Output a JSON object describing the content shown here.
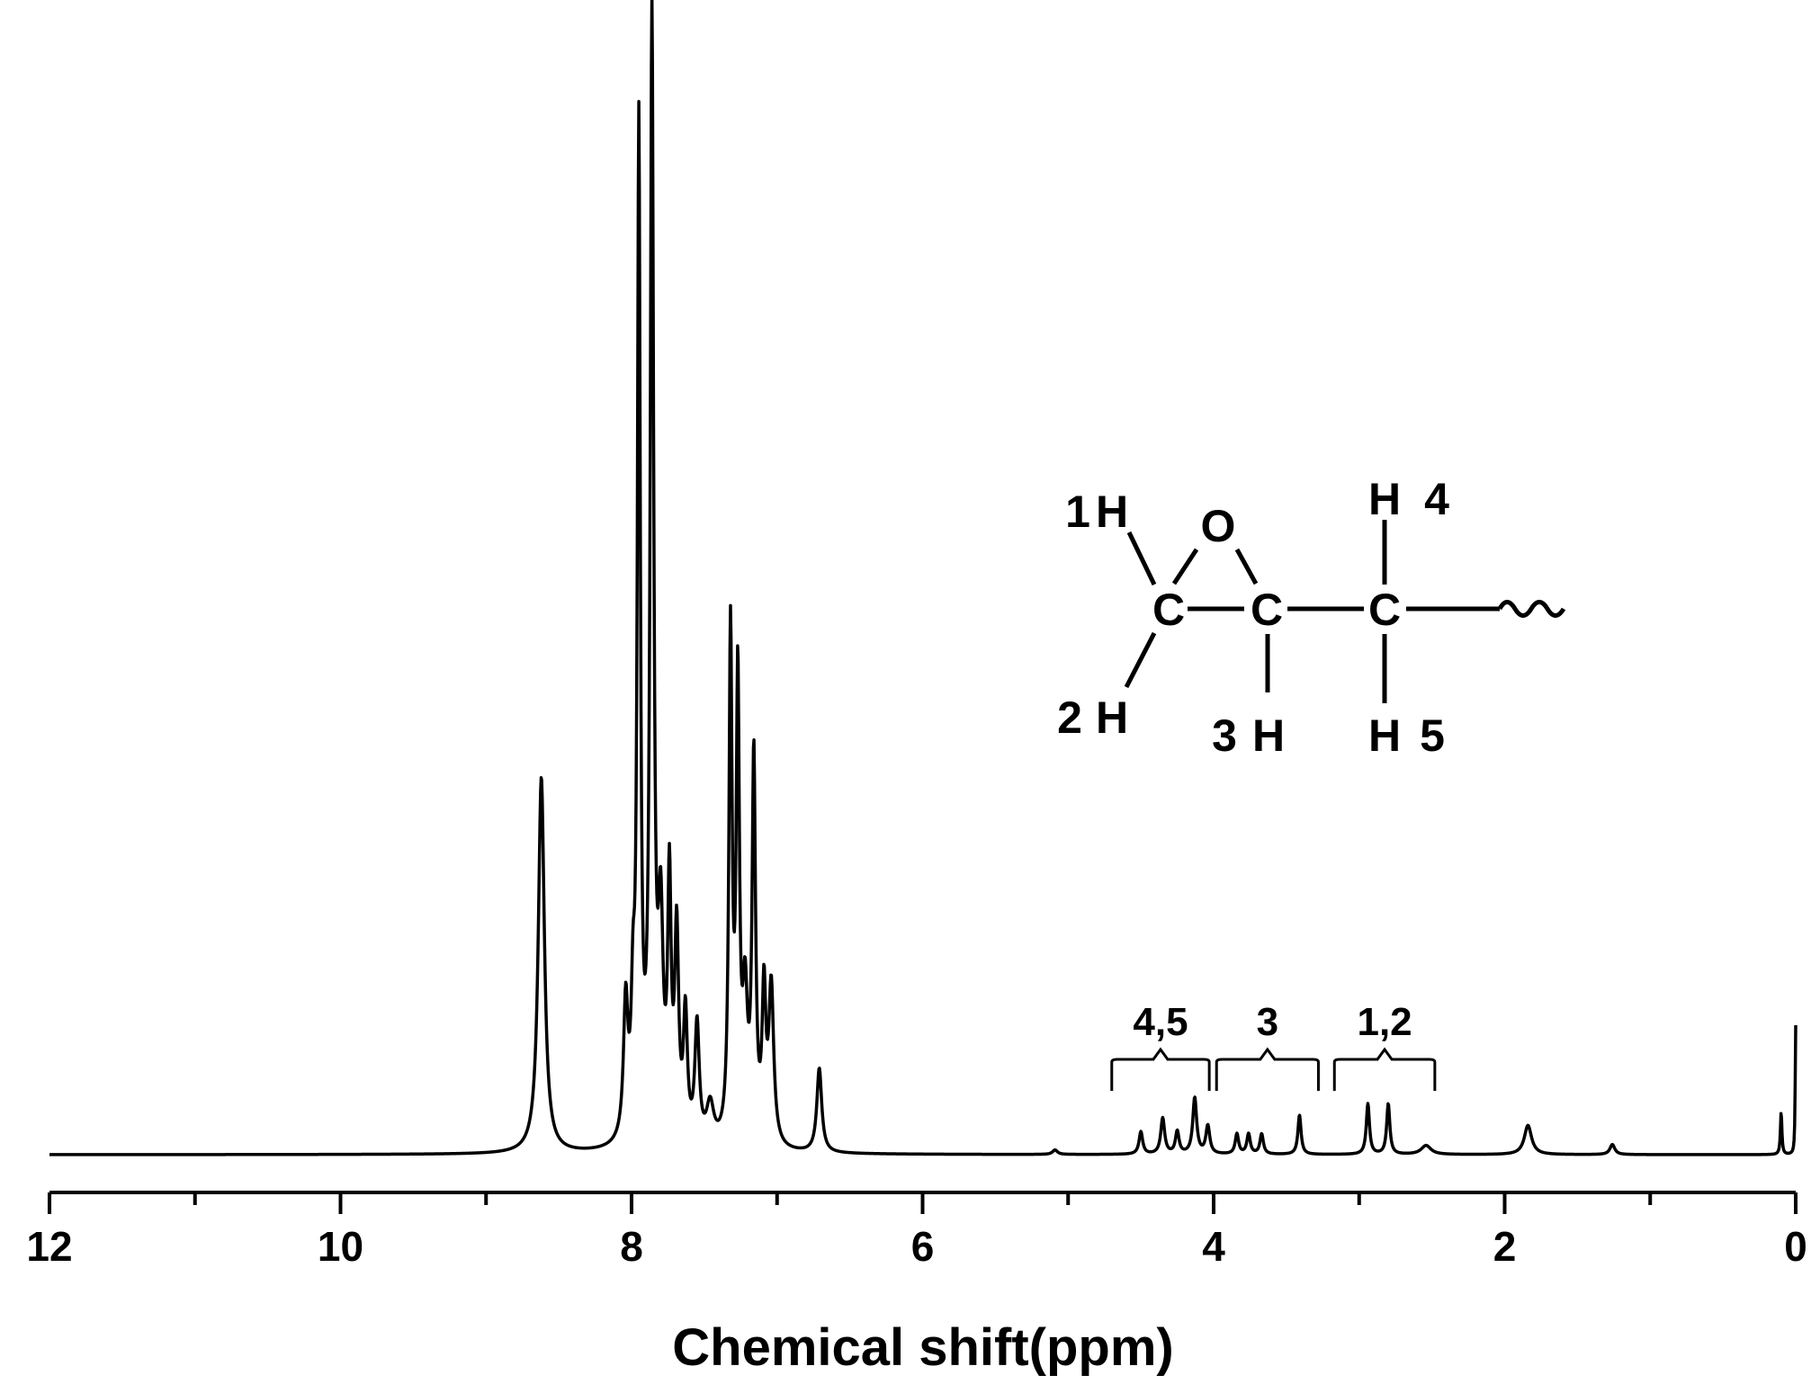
{
  "chart_data": {
    "type": "line",
    "title": "",
    "xlabel": "Chemical shift(ppm)",
    "ylabel": "",
    "xlim": [
      12,
      0
    ],
    "x_reversed": true,
    "ylim": [
      0,
      100
    ],
    "grid": false,
    "legend": "none",
    "x_ticks": [
      12,
      10,
      8,
      6,
      4,
      2,
      0
    ],
    "x_tick_labels": [
      "12",
      "10",
      "8",
      "6",
      "4",
      "2",
      "0"
    ],
    "x_minor_ticks": [
      11,
      9,
      7,
      5,
      3,
      1
    ],
    "series": [
      {
        "name": "",
        "baseline": 0,
        "peaks": [
          {
            "x": 8.62,
            "y": 33.5,
            "w": 0.025
          },
          {
            "x": 8.04,
            "y": 12.0,
            "w": 0.018
          },
          {
            "x": 7.99,
            "y": 10.0,
            "w": 0.015
          },
          {
            "x": 7.95,
            "y": 89.0,
            "w": 0.012
          },
          {
            "x": 7.86,
            "y": 99.0,
            "w": 0.014
          },
          {
            "x": 7.8,
            "y": 18.0,
            "w": 0.02
          },
          {
            "x": 7.74,
            "y": 22.0,
            "w": 0.014
          },
          {
            "x": 7.69,
            "y": 18.0,
            "w": 0.016
          },
          {
            "x": 7.63,
            "y": 11.0,
            "w": 0.016
          },
          {
            "x": 7.55,
            "y": 10.5,
            "w": 0.018
          },
          {
            "x": 7.46,
            "y": 3.5,
            "w": 0.03
          },
          {
            "x": 7.32,
            "y": 45.0,
            "w": 0.013
          },
          {
            "x": 7.27,
            "y": 40.0,
            "w": 0.013
          },
          {
            "x": 7.22,
            "y": 12.0,
            "w": 0.02
          },
          {
            "x": 7.16,
            "y": 34.0,
            "w": 0.014
          },
          {
            "x": 7.09,
            "y": 13.0,
            "w": 0.015
          },
          {
            "x": 7.04,
            "y": 14.0,
            "w": 0.02
          },
          {
            "x": 6.71,
            "y": 7.5,
            "w": 0.02
          },
          {
            "x": 5.09,
            "y": 0.4,
            "w": 0.02
          },
          {
            "x": 4.5,
            "y": 2.0,
            "w": 0.015
          },
          {
            "x": 4.35,
            "y": 3.2,
            "w": 0.016
          },
          {
            "x": 4.25,
            "y": 2.0,
            "w": 0.015
          },
          {
            "x": 4.13,
            "y": 5.0,
            "w": 0.016
          },
          {
            "x": 4.04,
            "y": 2.5,
            "w": 0.016
          },
          {
            "x": 3.84,
            "y": 1.8,
            "w": 0.014
          },
          {
            "x": 3.76,
            "y": 1.8,
            "w": 0.014
          },
          {
            "x": 3.67,
            "y": 1.8,
            "w": 0.014
          },
          {
            "x": 3.41,
            "y": 3.5,
            "w": 0.013
          },
          {
            "x": 2.94,
            "y": 4.5,
            "w": 0.013
          },
          {
            "x": 2.8,
            "y": 4.5,
            "w": 0.013
          },
          {
            "x": 2.54,
            "y": 0.8,
            "w": 0.04
          },
          {
            "x": 1.84,
            "y": 2.6,
            "w": 0.03
          },
          {
            "x": 1.26,
            "y": 0.9,
            "w": 0.02
          },
          {
            "x": 0.1,
            "y": 3.8,
            "w": 0.006
          },
          {
            "x": 0.0,
            "y": 11.5,
            "w": 0.004
          }
        ]
      }
    ],
    "annotations": [
      {
        "label": "4,5",
        "x_from": 4.7,
        "x_to": 4.03
      },
      {
        "label": "3",
        "x_from": 3.98,
        "x_to": 3.28
      },
      {
        "label": "1,2",
        "x_from": 3.17,
        "x_to": 2.48
      }
    ]
  },
  "molecule": {
    "labels": {
      "h1": "1",
      "h2": "2",
      "h3": "3",
      "h4": "4",
      "h5": "5",
      "hydrogen": "H",
      "carbon": "C",
      "oxygen": "O"
    }
  }
}
